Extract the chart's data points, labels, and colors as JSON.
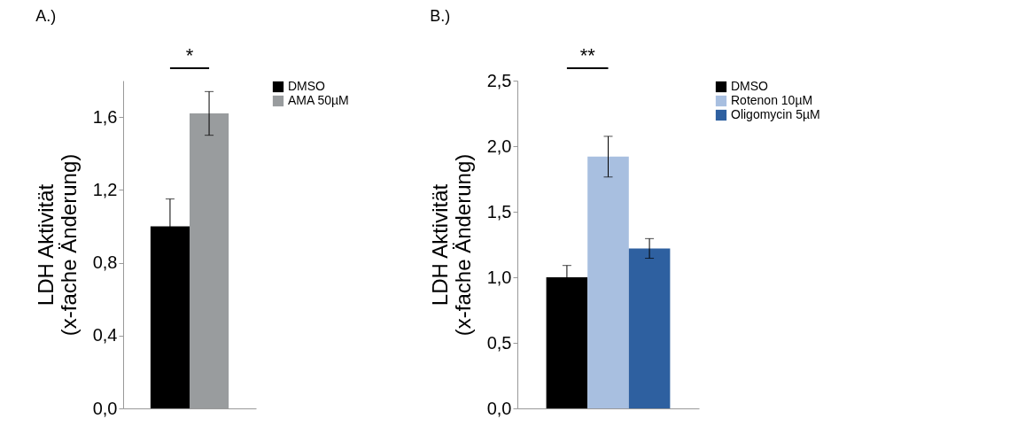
{
  "chart_data": [
    {
      "type": "bar",
      "title": "A.)",
      "ylabel": "LDH Aktivität\n(x-fache Änderung)",
      "categories": [
        null
      ],
      "ylim": [
        0,
        1.8
      ],
      "yticks": [
        {
          "value": 0,
          "label": "0,0"
        },
        {
          "value": 0.4,
          "label": "0,4"
        },
        {
          "value": 0.8,
          "label": "0,8"
        },
        {
          "value": 1.2,
          "label": "1,2"
        },
        {
          "value": 1.6,
          "label": "1,6"
        }
      ],
      "series": [
        {
          "name": "DMSO",
          "color": "#000000",
          "values": [
            1.0
          ],
          "errors": [
            0.15
          ]
        },
        {
          "name": "AMA 50µM",
          "color": "#999c9e",
          "values": [
            1.62
          ],
          "errors": [
            0.12
          ]
        }
      ],
      "annotations": [
        "*"
      ],
      "legend": "right",
      "grid": false
    },
    {
      "type": "bar",
      "title": "B.)",
      "ylabel": "LDH Aktivität\n(x-fache Änderung)",
      "categories": [
        null
      ],
      "ylim": [
        0,
        2.5
      ],
      "yticks": [
        {
          "value": 0,
          "label": "0,0"
        },
        {
          "value": 0.5,
          "label": "0,5"
        },
        {
          "value": 1.0,
          "label": "1,0"
        },
        {
          "value": 1.5,
          "label": "1,5"
        },
        {
          "value": 2.0,
          "label": "2,0"
        },
        {
          "value": 2.5,
          "label": "2,5"
        }
      ],
      "series": [
        {
          "name": "DMSO",
          "color": "#000000",
          "values": [
            1.0
          ],
          "errors": [
            0.09
          ]
        },
        {
          "name": "Rotenon 10µM",
          "color": "#a8bfe0",
          "values": [
            1.92
          ],
          "errors": [
            0.155
          ]
        },
        {
          "name": "Oligomycin 5µM",
          "color": "#2e60a0",
          "values": [
            1.22
          ],
          "errors": [
            0.075
          ]
        }
      ],
      "annotations": [
        "**"
      ],
      "legend": "right",
      "grid": false
    }
  ]
}
